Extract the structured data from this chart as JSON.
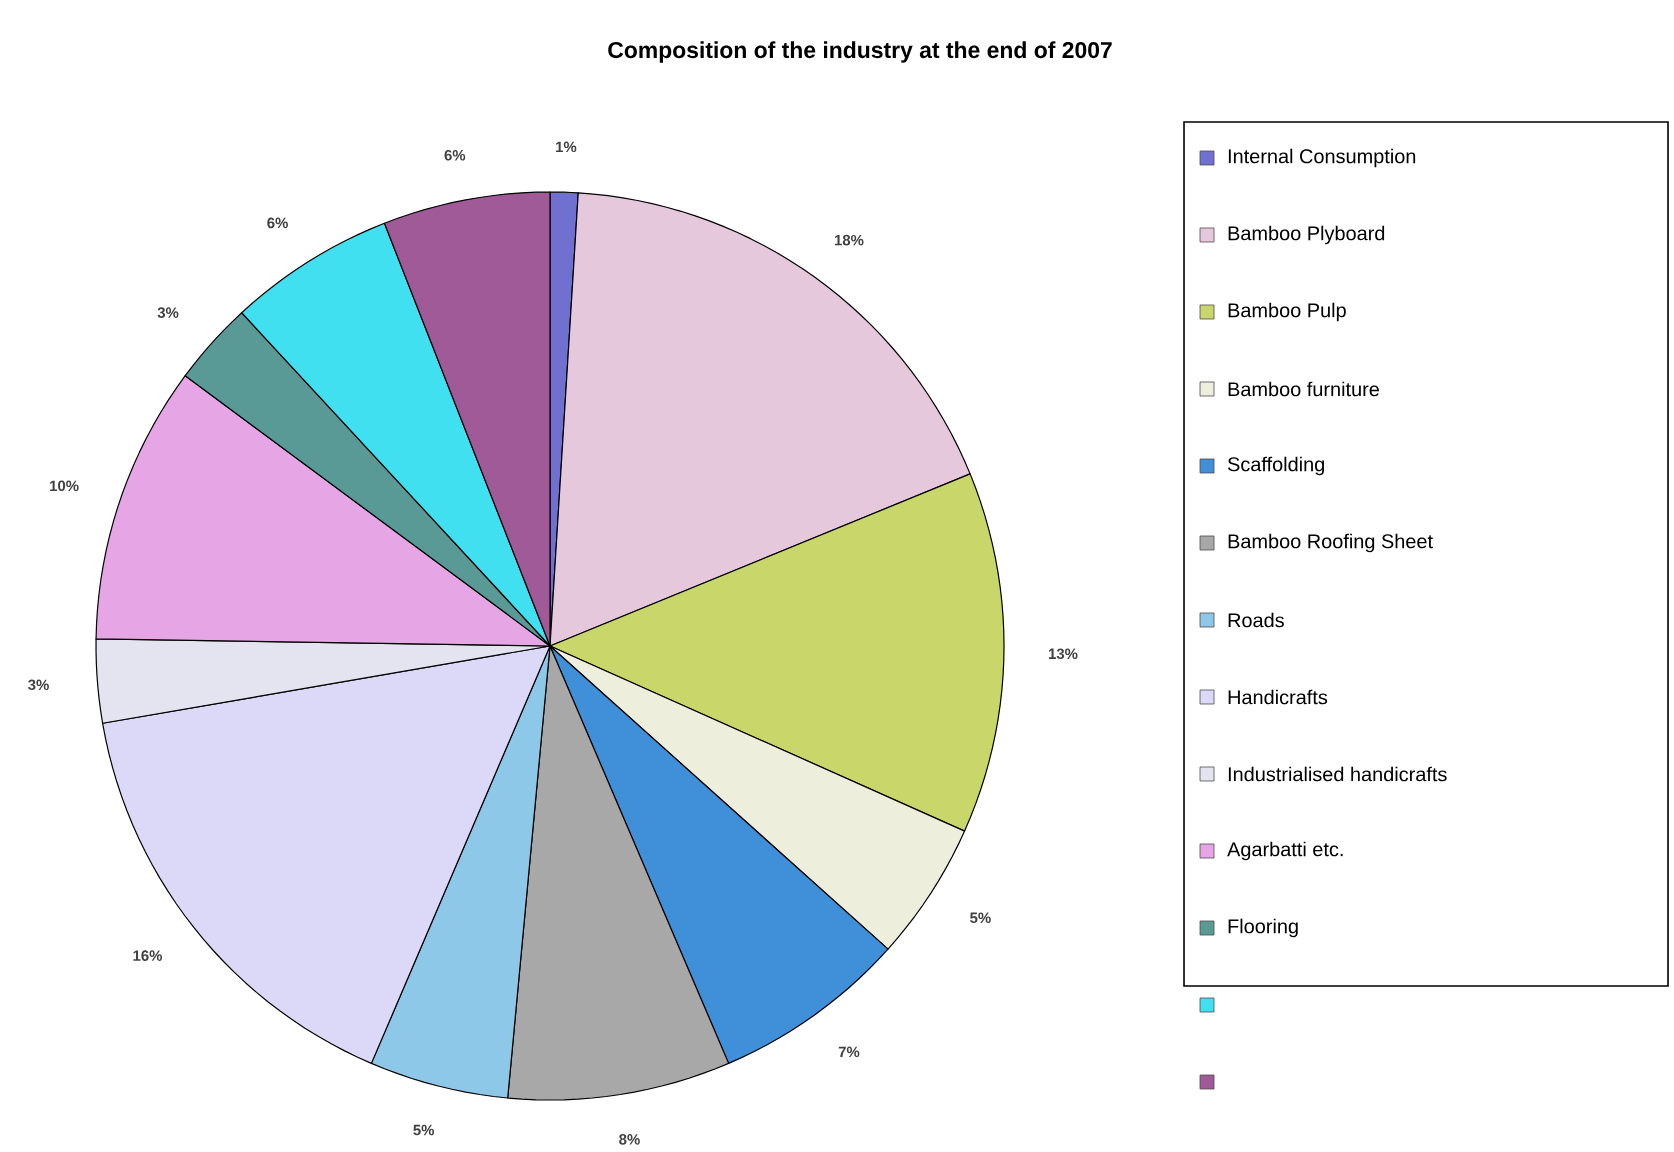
{
  "chart_data": {
    "type": "pie",
    "title": "Composition of the industry at the end of 2007",
    "categories": [
      "Internal Consumption",
      "Bamboo Plyboard",
      "Bamboo Pulp",
      "Bamboo furniture",
      "Scaffolding",
      "Bamboo Roofing Sheet",
      "Roads",
      "Handicrafts",
      "Industrialised handicrafts",
      "Agarbatti etc.",
      "Flooring",
      null,
      null
    ],
    "values": [
      1,
      18,
      13,
      5,
      7,
      8,
      5,
      16,
      3,
      10,
      3,
      6,
      6
    ],
    "value_labels": [
      "1%",
      "18%",
      "13%",
      "5%",
      "7%",
      "8%",
      "5%",
      "16%",
      "3%",
      "10%",
      "3%",
      "6%",
      "6%"
    ],
    "colors": [
      "#7070d0",
      "#e6c8dc",
      "#c8d66a",
      "#eeeedd",
      "#3f8fd9",
      "#a8a8a8",
      "#8ec8e8",
      "#dcd8f8",
      "#e4e4f0",
      "#e6a6e6",
      "#5a9a96",
      "#40e0f0",
      "#a05a98"
    ],
    "legend": "right"
  }
}
